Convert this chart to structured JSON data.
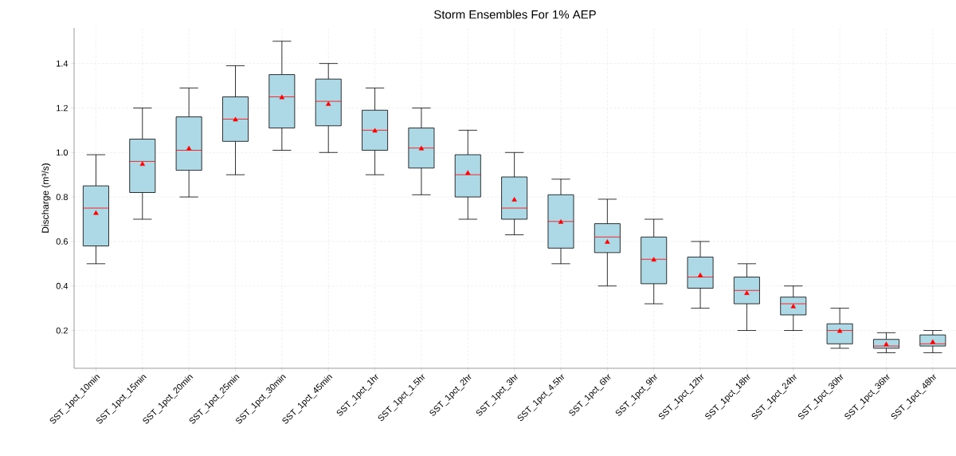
{
  "chart_data": {
    "type": "box",
    "title": "Storm Ensembles For 1% AEP",
    "ylabel": "Discharge (m³/s)",
    "categories": [
      "SST_1pct_10min",
      "SST_1pct_15min",
      "SST_1pct_20min",
      "SST_1pct_25min",
      "SST_1pct_30min",
      "SST_1pct_45min",
      "SST_1pct_1hr",
      "SST_1pct_1.5hr",
      "SST_1pct_2hr",
      "SST_1pct_3hr",
      "SST_1pct_4.5hr",
      "SST_1pct_6hr",
      "SST_1pct_9hr",
      "SST_1pct_12hr",
      "SST_1pct_18hr",
      "SST_1pct_24hr",
      "SST_1pct_30hr",
      "SST_1pct_36hr",
      "SST_1pct_48hr"
    ],
    "boxes": [
      {
        "low": 0.5,
        "q1": 0.58,
        "median": 0.75,
        "q3": 0.85,
        "high": 0.99,
        "mean": 0.73
      },
      {
        "low": 0.7,
        "q1": 0.82,
        "median": 0.96,
        "q3": 1.06,
        "high": 1.2,
        "mean": 0.95
      },
      {
        "low": 0.8,
        "q1": 0.92,
        "median": 1.01,
        "q3": 1.16,
        "high": 1.29,
        "mean": 1.02
      },
      {
        "low": 0.9,
        "q1": 1.05,
        "median": 1.15,
        "q3": 1.25,
        "high": 1.39,
        "mean": 1.15
      },
      {
        "low": 1.01,
        "q1": 1.11,
        "median": 1.25,
        "q3": 1.35,
        "high": 1.5,
        "mean": 1.25
      },
      {
        "low": 1.0,
        "q1": 1.12,
        "median": 1.23,
        "q3": 1.33,
        "high": 1.4,
        "mean": 1.22
      },
      {
        "low": 0.9,
        "q1": 1.01,
        "median": 1.1,
        "q3": 1.19,
        "high": 1.29,
        "mean": 1.1
      },
      {
        "low": 0.81,
        "q1": 0.93,
        "median": 1.02,
        "q3": 1.11,
        "high": 1.2,
        "mean": 1.02
      },
      {
        "low": 0.7,
        "q1": 0.8,
        "median": 0.9,
        "q3": 0.99,
        "high": 1.1,
        "mean": 0.91
      },
      {
        "low": 0.63,
        "q1": 0.7,
        "median": 0.75,
        "q3": 0.89,
        "high": 1.0,
        "mean": 0.79
      },
      {
        "low": 0.5,
        "q1": 0.57,
        "median": 0.69,
        "q3": 0.81,
        "high": 0.88,
        "mean": 0.69
      },
      {
        "low": 0.4,
        "q1": 0.55,
        "median": 0.62,
        "q3": 0.68,
        "high": 0.79,
        "mean": 0.6
      },
      {
        "low": 0.32,
        "q1": 0.41,
        "median": 0.52,
        "q3": 0.62,
        "high": 0.7,
        "mean": 0.52
      },
      {
        "low": 0.3,
        "q1": 0.39,
        "median": 0.44,
        "q3": 0.53,
        "high": 0.6,
        "mean": 0.45
      },
      {
        "low": 0.2,
        "q1": 0.32,
        "median": 0.38,
        "q3": 0.44,
        "high": 0.5,
        "mean": 0.37
      },
      {
        "low": 0.2,
        "q1": 0.27,
        "median": 0.32,
        "q3": 0.35,
        "high": 0.4,
        "mean": 0.31
      },
      {
        "low": 0.12,
        "q1": 0.14,
        "median": 0.2,
        "q3": 0.23,
        "high": 0.3,
        "mean": 0.2
      },
      {
        "low": 0.1,
        "q1": 0.12,
        "median": 0.13,
        "q3": 0.16,
        "high": 0.19,
        "mean": 0.14
      },
      {
        "low": 0.1,
        "q1": 0.13,
        "median": 0.14,
        "q3": 0.18,
        "high": 0.2,
        "mean": 0.15
      }
    ],
    "color": "#add8e6",
    "ylim": [
      0.03,
      1.56
    ],
    "yticks": [
      0.2,
      0.4,
      0.6,
      0.8,
      {
        "value": 1.0,
        "label": "1.0"
      },
      1.2,
      1.4
    ],
    "grid": true,
    "marker": "triangle"
  }
}
